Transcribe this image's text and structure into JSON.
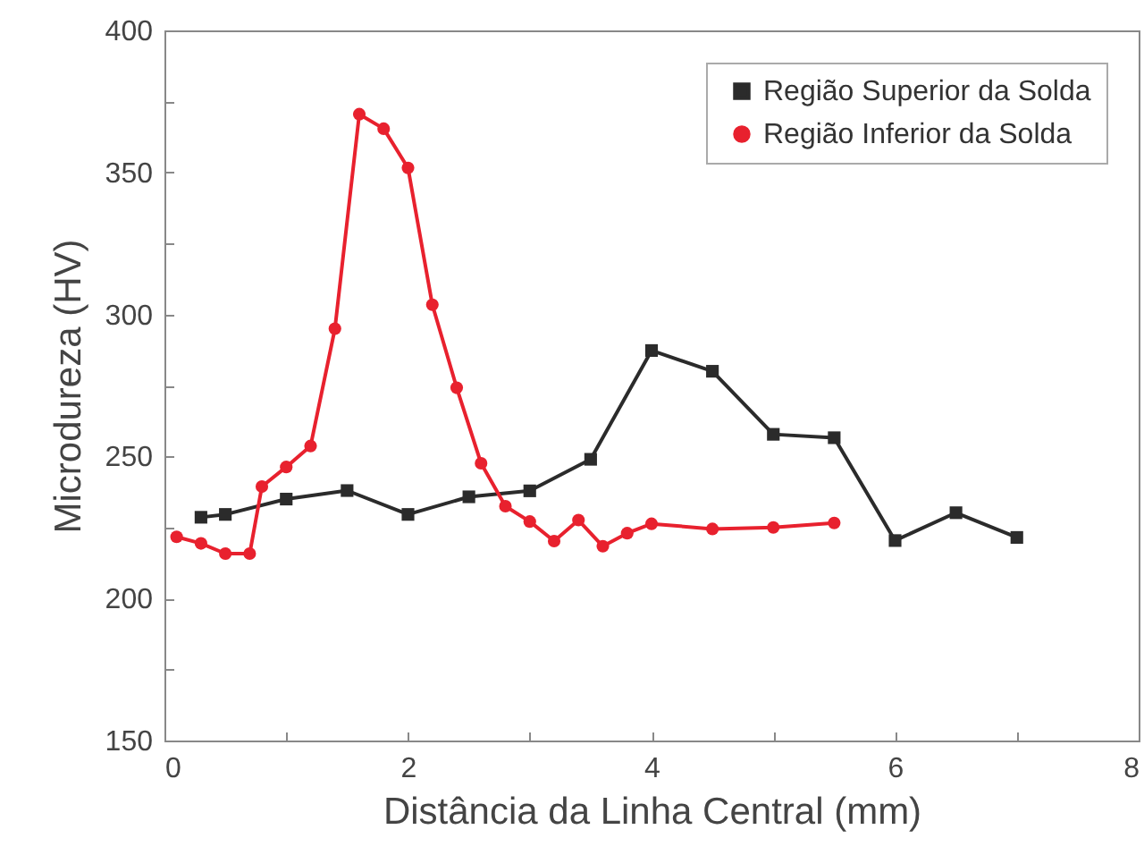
{
  "chart_data": {
    "type": "line",
    "xlabel": "Distância da Linha Central (mm)",
    "ylabel": "Microdureza (HV)",
    "xlim": [
      0,
      8
    ],
    "ylim": [
      150,
      400
    ],
    "xticks": [
      0,
      {
        "value": 1,
        "label": null
      },
      2,
      {
        "value": 3,
        "label": null
      },
      4,
      {
        "value": 5,
        "label": null
      },
      6,
      {
        "value": 7,
        "label": null
      },
      8
    ],
    "yticks": [
      150,
      {
        "value": 175,
        "label": null
      },
      200,
      {
        "value": 225,
        "label": null
      },
      250,
      {
        "value": 275,
        "label": null
      },
      300,
      {
        "value": 325,
        "label": null
      },
      350,
      {
        "value": 375,
        "label": null
      },
      400
    ],
    "grid": false,
    "legend": "top right",
    "line_style": "solid",
    "series": [
      {
        "name": "Região Superior da Solda",
        "color": "#2b2b2b",
        "marker": "square",
        "x": [
          0.3,
          0.5,
          1,
          1.5,
          2,
          2.5,
          3,
          3.5,
          4,
          4.5,
          5,
          5.5,
          6,
          6.5,
          7
        ],
        "values": [
          228.6,
          229.6,
          235,
          238,
          229.6,
          235.8,
          237.9,
          249,
          287.3,
          280,
          257.8,
          256.6,
          220.4,
          230.2,
          221.5
        ]
      },
      {
        "name": "Região Inferior da Solda",
        "color": "#e8212e",
        "marker": "circle",
        "x": [
          0.1,
          0.3,
          0.5,
          0.7,
          0.8,
          1.0,
          1.2,
          1.4,
          1.6,
          1.8,
          2.0,
          2.2,
          2.4,
          2.6,
          2.8,
          3.0,
          3.2,
          3.4,
          3.6,
          3.8,
          4.0,
          4.5,
          5.0,
          5.5
        ],
        "values": [
          221.7,
          219.4,
          215.8,
          215.8,
          239.4,
          246.3,
          253.7,
          295,
          370.5,
          365.4,
          351.6,
          303.4,
          274.2,
          247.6,
          232.5,
          227.1,
          220.2,
          227.6,
          218.4,
          223,
          226.3,
          224.5,
          225,
          226.6
        ]
      }
    ]
  }
}
